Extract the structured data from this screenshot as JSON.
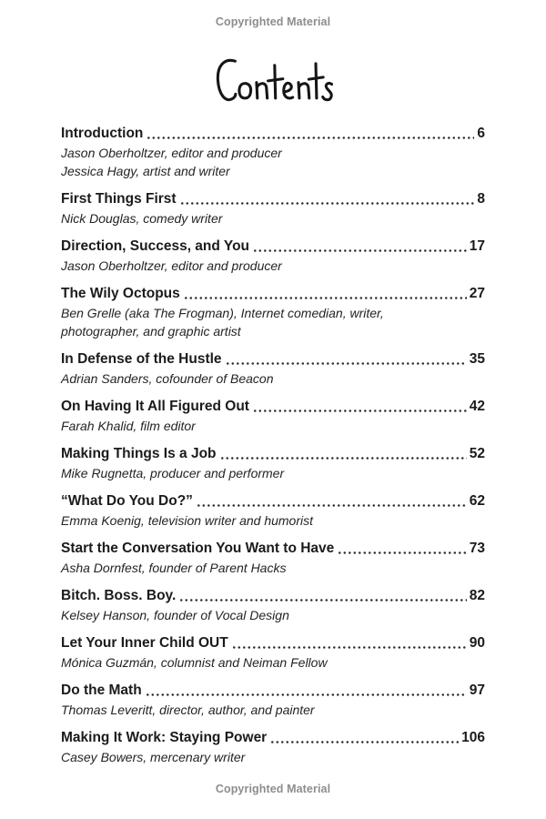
{
  "page": {
    "copyright_top": "Copyrighted Material",
    "copyright_bottom": "Copyrighted Material",
    "title": "Contents"
  },
  "toc": {
    "entries": [
      {
        "title": "Introduction",
        "page": "6",
        "authors": [
          "Jason Oberholtzer, editor and producer",
          "Jessica Hagy, artist and writer"
        ]
      },
      {
        "title": "First Things First",
        "page": "8",
        "authors": [
          "Nick Douglas, comedy writer"
        ]
      },
      {
        "title": "Direction, Success, and You",
        "page": "17",
        "authors": [
          "Jason Oberholtzer, editor and producer"
        ]
      },
      {
        "title": "The Wily Octopus",
        "page": "27",
        "authors": [
          "Ben Grelle (aka The Frogman), Internet comedian, writer,",
          "photographer, and graphic artist"
        ]
      },
      {
        "title": "In Defense of the Hustle",
        "page": "35",
        "authors": [
          "Adrian Sanders, cofounder of Beacon"
        ]
      },
      {
        "title": "On Having It All Figured Out",
        "page": "42",
        "authors": [
          "Farah Khalid, film editor"
        ]
      },
      {
        "title": "Making Things Is a Job",
        "page": "52",
        "authors": [
          "Mike Rugnetta, producer and performer"
        ]
      },
      {
        "title": "“What Do You Do?”",
        "page": "62",
        "authors": [
          "Emma Koenig, television writer and humorist"
        ]
      },
      {
        "title": "Start the Conversation You Want to Have",
        "page": "73",
        "authors": [
          "Asha Dornfest, founder of Parent Hacks"
        ]
      },
      {
        "title": "Bitch. Boss. Boy.",
        "page": "82",
        "authors": [
          "Kelsey Hanson, founder of Vocal Design"
        ]
      },
      {
        "title": "Let Your Inner Child OUT",
        "page": "90",
        "authors": [
          "Mónica Guzmán, columnist and Neiman Fellow"
        ]
      },
      {
        "title": "Do the Math",
        "page": "97",
        "authors": [
          "Thomas Leveritt, director, author, and painter"
        ]
      },
      {
        "title": "Making It Work: Staying Power",
        "page": "106",
        "authors": [
          "Casey Bowers, mercenary writer"
        ]
      }
    ]
  }
}
